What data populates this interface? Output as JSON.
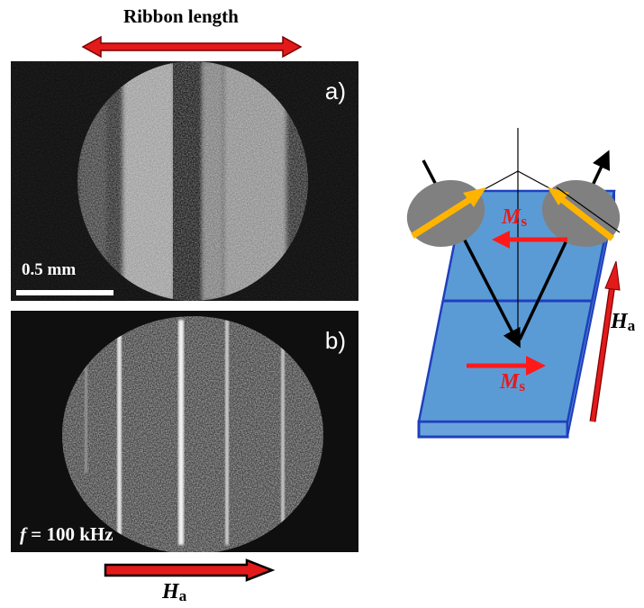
{
  "figure": {
    "top_label": "Ribbon length",
    "panel_a": {
      "label": "a)",
      "scale_bar_text": "0.5 mm"
    },
    "panel_b": {
      "label": "b)",
      "frequency": {
        "symbol": "f",
        "text": " = 100 kHz"
      }
    },
    "bottom_field": {
      "symbol": "H",
      "subscript": "a"
    },
    "diagram": {
      "field": {
        "symbol": "H",
        "subscript": "a"
      },
      "upper_magnetization": {
        "symbol": "M",
        "subscript": "s"
      },
      "lower_magnetization": {
        "symbol": "M",
        "subscript": "s"
      }
    },
    "colors": {
      "arrow_red": "#ff1a1a",
      "arrow_dark_red": "#c00000",
      "ribbon_fill": "#5b9bd5",
      "ribbon_edge": "#1f3fbf",
      "beam": "#000000",
      "magnet_arrow": "#ffb400",
      "ellipse_gray": "#808080",
      "magnetization_text": "#e8191a"
    }
  }
}
